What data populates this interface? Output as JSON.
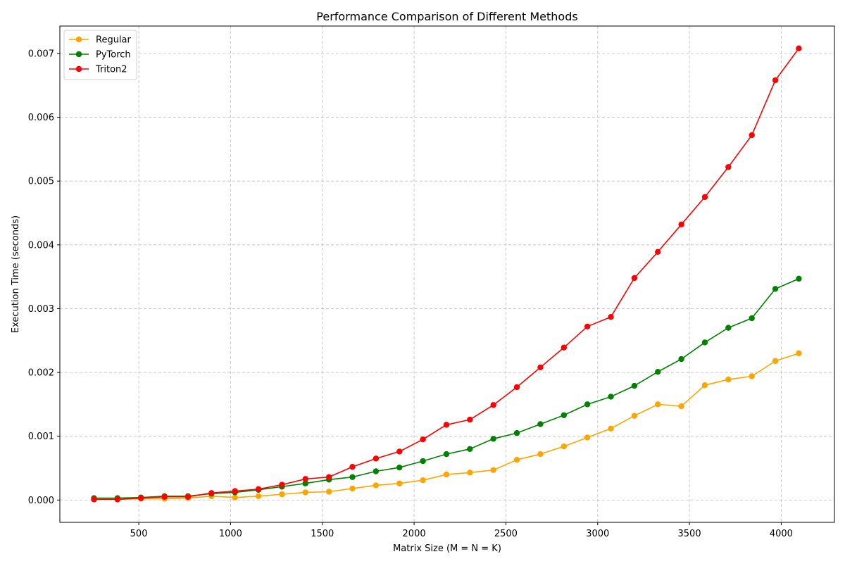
{
  "chart_data": {
    "type": "line",
    "title": "Performance Comparison of Different Methods",
    "xlabel": "Matrix Size (M = N = K)",
    "ylabel": "Execution Time (seconds)",
    "xlim": [
      70,
      4290
    ],
    "ylim": [
      -0.00035,
      0.00743
    ],
    "x_ticks": [
      500,
      1000,
      1500,
      2000,
      2500,
      3000,
      3500,
      4000
    ],
    "x_tick_labels": [
      "500",
      "1000",
      "1500",
      "2000",
      "2500",
      "3000",
      "3500",
      "4000"
    ],
    "y_ticks": [
      0,
      0.001,
      0.002,
      0.003,
      0.004,
      0.005,
      0.006,
      0.007
    ],
    "y_tick_labels": [
      "0.000",
      "0.001",
      "0.002",
      "0.003",
      "0.004",
      "0.005",
      "0.006",
      "0.007"
    ],
    "grid": true,
    "legend_position": "top-left",
    "x": [
      256,
      384,
      512,
      640,
      768,
      896,
      1024,
      1152,
      1280,
      1408,
      1536,
      1664,
      1792,
      1920,
      2048,
      2176,
      2304,
      2432,
      2560,
      2688,
      2816,
      2944,
      3072,
      3200,
      3328,
      3456,
      3584,
      3712,
      3840,
      3968,
      4096
    ],
    "series": [
      {
        "name": "Regular",
        "color": "#ffa500",
        "values": [
          1e-05,
          1e-05,
          2e-05,
          2e-05,
          3e-05,
          6e-05,
          4e-05,
          6e-05,
          9e-05,
          0.00012,
          0.00013,
          0.00018,
          0.00023,
          0.00026,
          0.00031,
          0.0004,
          0.00043,
          0.00047,
          0.00063,
          0.00072,
          0.00084,
          0.00098,
          0.00112,
          0.00132,
          0.0015,
          0.00147,
          0.0018,
          0.00189,
          0.00194,
          0.00218,
          0.0023
        ]
      },
      {
        "name": "PyTorch",
        "color": "#008000",
        "values": [
          3e-05,
          3e-05,
          4e-05,
          6e-05,
          6e-05,
          0.0001,
          0.00012,
          0.00016,
          0.00021,
          0.00026,
          0.00032,
          0.00036,
          0.00045,
          0.00051,
          0.00061,
          0.00072,
          0.0008,
          0.00096,
          0.00105,
          0.00119,
          0.00133,
          0.0015,
          0.00162,
          0.00179,
          0.00201,
          0.00221,
          0.00247,
          0.0027,
          0.00285,
          0.00331,
          0.00347
        ]
      },
      {
        "name": "Triton2",
        "color": "#ff0000",
        "values": [
          1e-05,
          1e-05,
          3e-05,
          5e-05,
          5e-05,
          0.00011,
          0.00014,
          0.00017,
          0.00024,
          0.00033,
          0.00036,
          0.00052,
          0.00065,
          0.00076,
          0.00095,
          0.00118,
          0.00126,
          0.00149,
          0.00177,
          0.00208,
          0.00239,
          0.00272,
          0.00287,
          0.00348,
          0.00389,
          0.00432,
          0.00475,
          0.00522,
          0.00572,
          0.00658,
          0.00708
        ]
      }
    ]
  }
}
